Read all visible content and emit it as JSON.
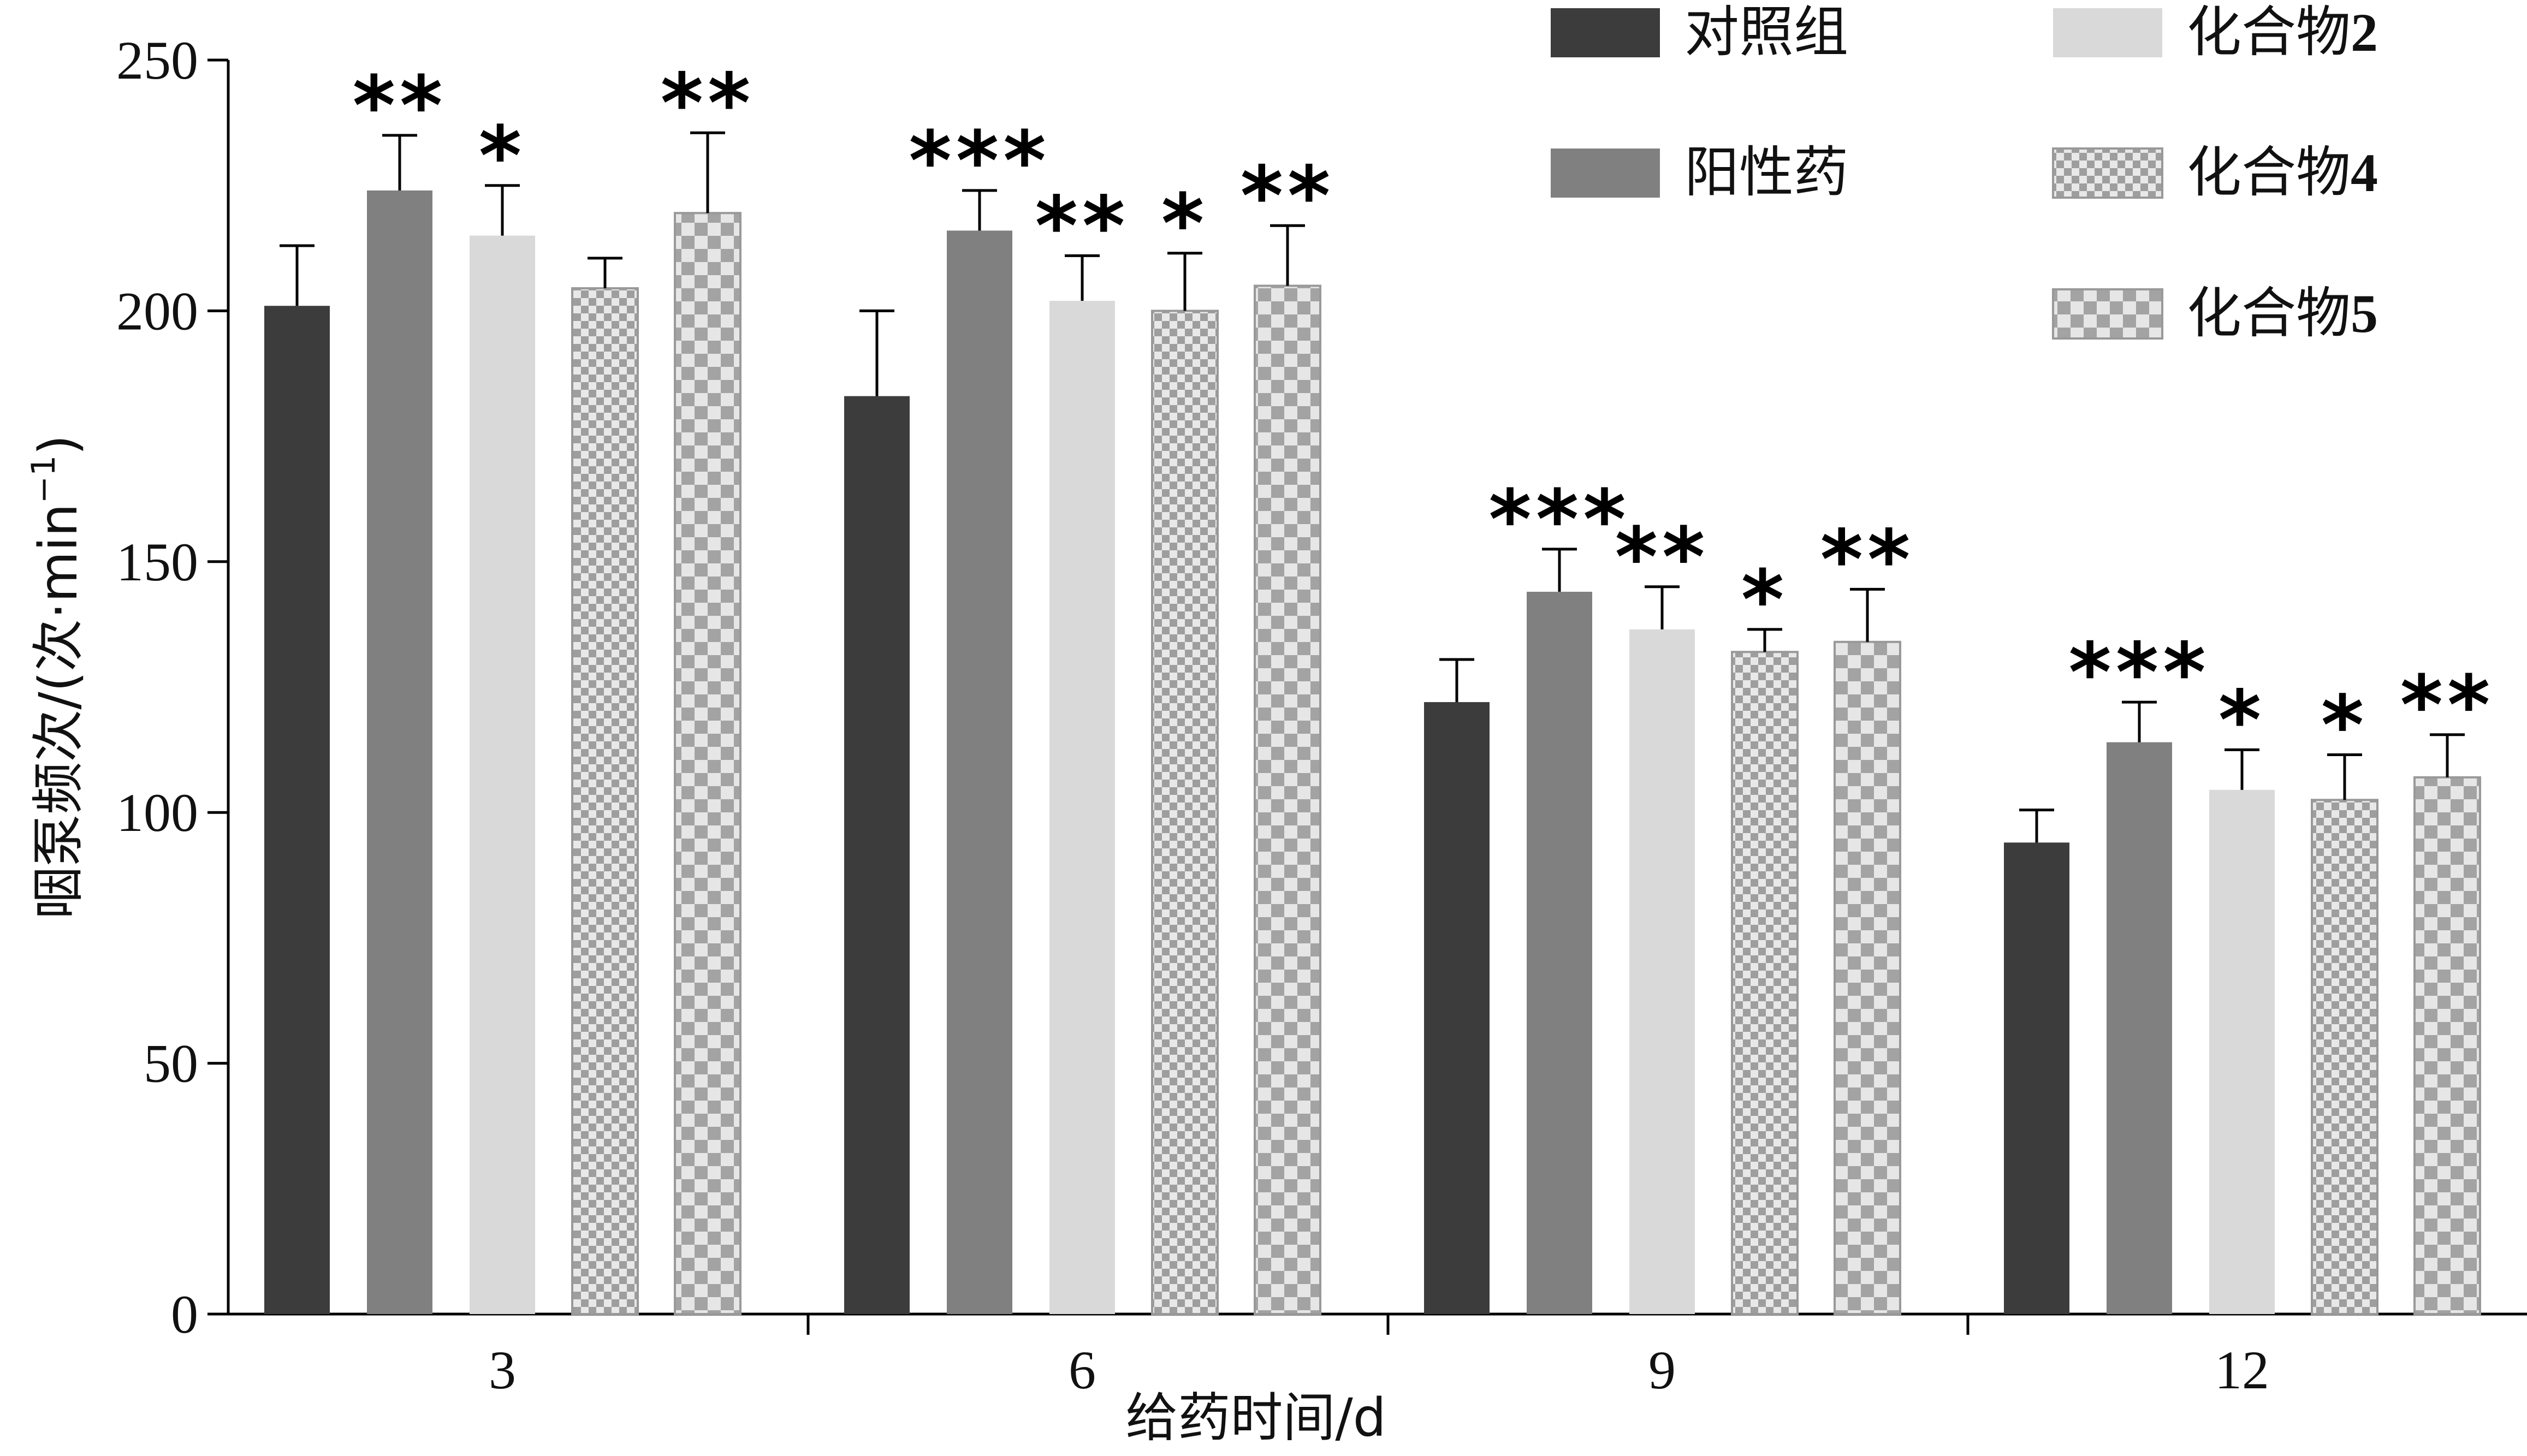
{
  "chart_data": {
    "type": "bar",
    "xlabel": "给药时间/d",
    "ylabel": "咽泵频次/(次·min",
    "ylabel_sup": "−1",
    "ylabel_close": ")",
    "ylim": [
      0,
      250
    ],
    "yticks": [
      "0",
      "50",
      "100",
      "150",
      "200",
      "250"
    ],
    "categories": [
      "3",
      "6",
      "9",
      "12"
    ],
    "grid": false,
    "legend_position": "top-right",
    "series": [
      {
        "name": "对照组",
        "name_suffix": "",
        "color": "#3c3c3c",
        "pattern": "solid",
        "values": [
          201,
          183,
          122,
          94
        ],
        "errors": [
          12,
          17,
          8.5,
          6.5
        ],
        "sig": [
          "",
          "",
          "",
          ""
        ]
      },
      {
        "name": "阳性药",
        "name_suffix": "",
        "color": "#808080",
        "pattern": "solid",
        "values": [
          224,
          216,
          144,
          114
        ],
        "errors": [
          11,
          8,
          8.5,
          8
        ],
        "sig": [
          "**",
          "***",
          "***",
          "***"
        ]
      },
      {
        "name": "化合物",
        "name_suffix": "2",
        "color": "#d9d9d9",
        "pattern": "solid",
        "values": [
          215,
          202,
          136.5,
          104.5
        ],
        "errors": [
          10,
          9,
          8.5,
          8
        ],
        "sig": [
          "*",
          "**",
          "**",
          "*"
        ]
      },
      {
        "name": "化合物",
        "name_suffix": "4",
        "color": "#bdbdbd",
        "pattern": "fine-check",
        "values": [
          204.5,
          200,
          132,
          102.5
        ],
        "errors": [
          6,
          11.5,
          4.5,
          9
        ],
        "sig": [
          "",
          "*",
          "*",
          "*"
        ]
      },
      {
        "name": "化合物",
        "name_suffix": "5",
        "color": "#b3b3b3",
        "pattern": "coarse-check",
        "values": [
          219.5,
          205,
          134,
          107
        ],
        "errors": [
          16,
          12,
          10.5,
          8.5
        ],
        "sig": [
          "**",
          "**",
          "**",
          "**"
        ]
      }
    ]
  }
}
